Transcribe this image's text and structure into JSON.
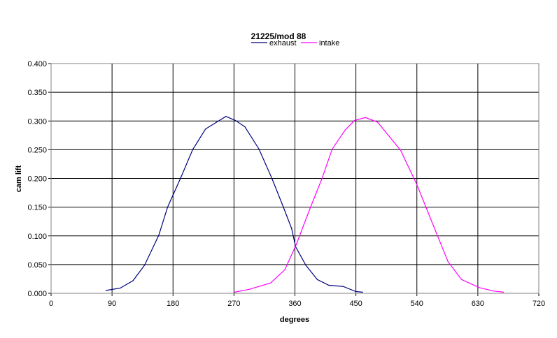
{
  "chart_data": {
    "type": "line",
    "title": "21225/mod 88",
    "xlabel": "degrees",
    "ylabel": "cam lift",
    "xlim": [
      0,
      720
    ],
    "ylim": [
      0,
      0.4
    ],
    "x_ticks": [
      "0",
      "90",
      "180",
      "270",
      "360",
      "450",
      "540",
      "630",
      "720"
    ],
    "y_ticks": [
      "0.000",
      "0.050",
      "0.100",
      "0.150",
      "0.200",
      "0.250",
      "0.300",
      "0.350",
      "0.400"
    ],
    "grid": true,
    "legend_position": "top",
    "series": [
      {
        "name": "exhaust",
        "color": "#000080",
        "x": [
          81,
          102,
          121,
          138,
          159,
          172,
          191,
          209,
          228,
          258,
          272,
          286,
          307,
          326,
          343,
          355,
          361,
          376,
          393,
          410,
          431,
          450,
          460
        ],
        "y": [
          0.005,
          0.009,
          0.022,
          0.049,
          0.101,
          0.15,
          0.2,
          0.25,
          0.286,
          0.308,
          0.301,
          0.29,
          0.251,
          0.2,
          0.15,
          0.113,
          0.081,
          0.049,
          0.024,
          0.014,
          0.012,
          0.003,
          0.002
        ]
      },
      {
        "name": "intake",
        "color": "#FF00FF",
        "x": [
          271,
          293,
          324,
          345,
          362,
          383,
          400,
          415,
          434,
          448,
          464,
          482,
          516,
          540,
          565,
          586,
          606,
          632,
          653,
          668
        ],
        "y": [
          0.002,
          0.007,
          0.018,
          0.041,
          0.085,
          0.15,
          0.2,
          0.251,
          0.284,
          0.301,
          0.306,
          0.298,
          0.249,
          0.189,
          0.116,
          0.055,
          0.024,
          0.01,
          0.004,
          0.002
        ]
      }
    ]
  }
}
